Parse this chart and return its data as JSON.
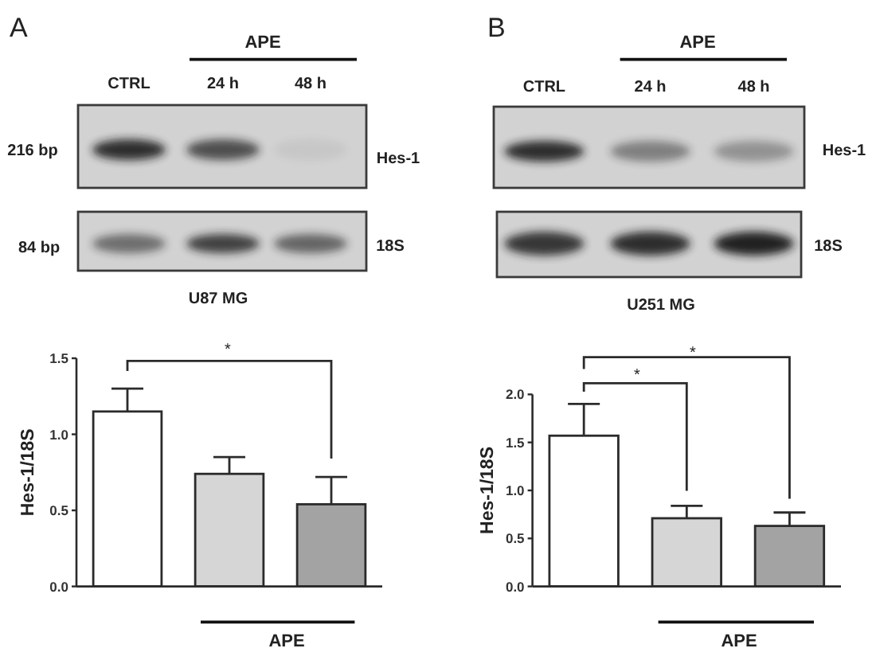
{
  "chart_data": [
    {
      "type": "bar",
      "title": "A",
      "categories": [
        null,
        null,
        null
      ],
      "values": [
        1.15,
        0.74,
        0.54
      ],
      "colors": [
        "#ffffff",
        "#d6d6d6",
        "#a3a3a3"
      ],
      "errors": [
        [
          1.15,
          1.3
        ],
        [
          0.74,
          0.85
        ],
        [
          0.54,
          0.72
        ]
      ],
      "ylabel": "Hes-1/18S",
      "ylim": [
        0,
        1.5
      ],
      "yticks": [
        {
          "value": 0,
          "label": "0.0"
        },
        {
          "value": 0.5,
          "label": "0.5"
        },
        {
          "value": 1,
          "label": "1.0"
        },
        {
          "value": 1.5,
          "label": "1.5"
        }
      ],
      "tick_labels": "y",
      "annotations": [
        "APE",
        "CTRL",
        "24 h",
        "48 h",
        "216 bp",
        "Hes-1",
        "84 bp",
        "18S",
        "U87 MG",
        "*",
        "APE"
      ]
    },
    {
      "type": "bar",
      "title": "B",
      "categories": [
        null,
        null,
        null
      ],
      "values": [
        1.57,
        0.71,
        0.63
      ],
      "colors": [
        "#ffffff",
        "#d6d6d6",
        "#a3a3a3"
      ],
      "errors": [
        [
          1.57,
          1.9
        ],
        [
          0.71,
          0.84
        ],
        [
          0.63,
          0.77
        ]
      ],
      "ylabel": "Hes-1/18S",
      "ylim": [
        0,
        2
      ],
      "yticks": [
        {
          "value": 0,
          "label": "0.0"
        },
        {
          "value": 0.5,
          "label": "0.5"
        },
        {
          "value": 1,
          "label": "1.0"
        },
        {
          "value": 1.5,
          "label": "1.5"
        },
        {
          "value": 2,
          "label": "2.0"
        }
      ],
      "tick_labels": "y",
      "annotations": [
        "APE",
        "CTRL",
        "24 h",
        "48 h",
        "Hes-1",
        "18S",
        "U251 MG",
        "*",
        "*",
        "APE"
      ]
    }
  ]
}
